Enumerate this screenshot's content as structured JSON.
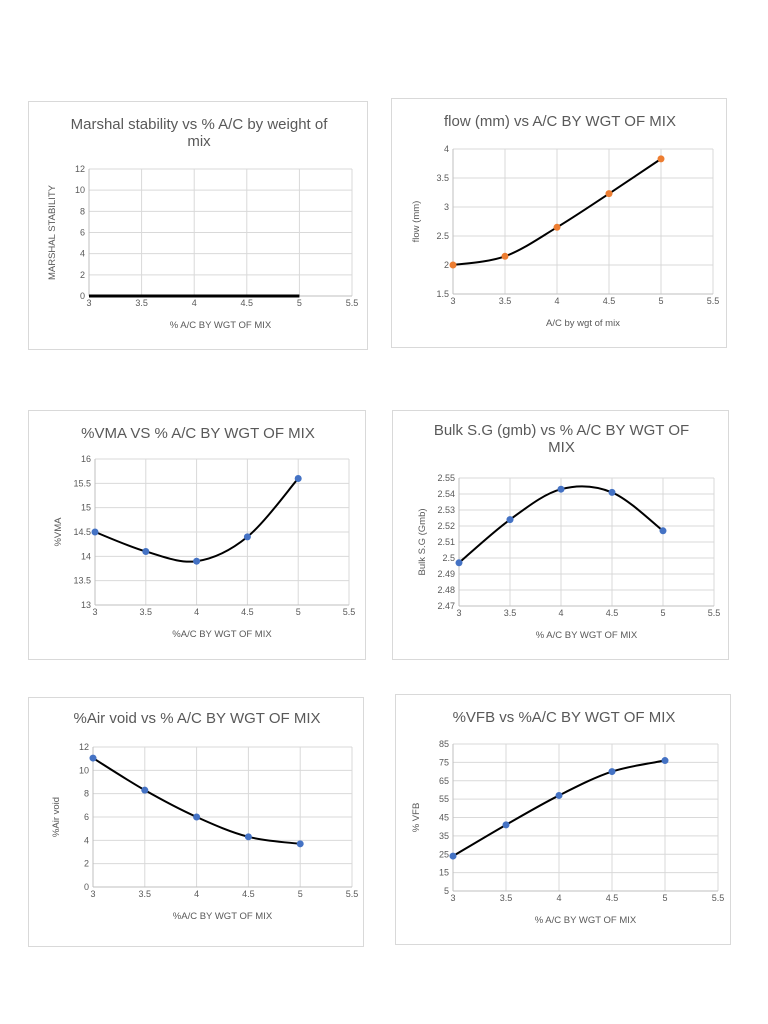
{
  "chart_data": [
    {
      "type": "line",
      "title": "Marshal stability vs % A/C by weight of mix",
      "xlabel": "% A/C BY WGT OF MIX",
      "ylabel": "MARSHAL STABILITY",
      "xlim": [
        3,
        5.5
      ],
      "ylim": [
        0,
        12
      ],
      "xticks": [
        "3",
        "3.5",
        "4",
        "4.5",
        "5",
        "5.5"
      ],
      "yticks": [
        "0",
        "2",
        "4",
        "6",
        "8",
        "10",
        "12"
      ],
      "grid": true,
      "smooth": false,
      "markers": false,
      "x": [
        3,
        3.5,
        4,
        4.5,
        5
      ],
      "values": [
        0,
        0,
        0,
        0,
        0
      ],
      "line_color": "#000000"
    },
    {
      "type": "line",
      "title": "flow (mm) vs A/C BY WGT OF MIX",
      "xlabel": "A/C by wgt of mix",
      "ylabel": "flow (mm)",
      "xlim": [
        3,
        5.5
      ],
      "ylim": [
        1.5,
        4
      ],
      "xticks": [
        "3",
        "3.5",
        "4",
        "4.5",
        "5",
        "5.5"
      ],
      "yticks": [
        "1.5",
        "2",
        "2.5",
        "3",
        "3.5",
        "4"
      ],
      "grid": true,
      "smooth": true,
      "markers": true,
      "x": [
        3,
        3.5,
        4,
        4.5,
        5
      ],
      "values": [
        2.0,
        2.15,
        2.65,
        3.23,
        3.83
      ],
      "marker_color": "#ed7d31",
      "line_color": "#000000"
    },
    {
      "type": "line",
      "title": "%VMA VS % A/C BY WGT OF MIX",
      "xlabel": "%A/C BY WGT OF MIX",
      "ylabel": "%VMA",
      "xlim": [
        3,
        5.5
      ],
      "ylim": [
        13,
        16
      ],
      "xticks": [
        "3",
        "3.5",
        "4",
        "4.5",
        "5",
        "5.5"
      ],
      "yticks": [
        "13",
        "13.5",
        "14",
        "14.5",
        "15",
        "15.5",
        "16"
      ],
      "grid": true,
      "smooth": true,
      "markers": true,
      "x": [
        3,
        3.5,
        4,
        4.5,
        5
      ],
      "values": [
        14.5,
        14.1,
        13.9,
        14.4,
        15.6
      ],
      "marker_color": "#4472c4",
      "line_color": "#000000"
    },
    {
      "type": "line",
      "title": "Bulk S.G (gmb) vs % A/C BY WGT OF MIX",
      "xlabel": "% A/C BY WGT OF MIX",
      "ylabel": "Bulk S.G (Gmb)",
      "xlim": [
        3,
        5.5
      ],
      "ylim": [
        2.47,
        2.55
      ],
      "xticks": [
        "3",
        "3.5",
        "4",
        "4.5",
        "5",
        "5.5"
      ],
      "yticks": [
        "2.47",
        "2.48",
        "2.49",
        "2.5",
        "2.51",
        "2.52",
        "2.53",
        "2.54",
        "2.55"
      ],
      "grid": true,
      "smooth": true,
      "markers": true,
      "x": [
        3,
        3.5,
        4,
        4.5,
        5
      ],
      "values": [
        2.497,
        2.524,
        2.543,
        2.541,
        2.517
      ],
      "marker_color": "#4472c4",
      "line_color": "#000000"
    },
    {
      "type": "line",
      "title": "%Air void vs % A/C BY WGT OF MIX",
      "xlabel": "%A/C BY WGT OF MIX",
      "ylabel": "%Air void",
      "xlim": [
        3,
        5.5
      ],
      "ylim": [
        0,
        12
      ],
      "xticks": [
        "3",
        "3.5",
        "4",
        "4.5",
        "5",
        "5.5"
      ],
      "yticks": [
        "0",
        "2",
        "4",
        "6",
        "8",
        "10",
        "12"
      ],
      "grid": true,
      "smooth": true,
      "markers": true,
      "x": [
        3,
        3.5,
        4,
        4.5,
        5
      ],
      "values": [
        11.05,
        8.3,
        6.0,
        4.3,
        3.7
      ],
      "marker_color": "#4472c4",
      "line_color": "#000000"
    },
    {
      "type": "line",
      "title": "%VFB vs %A/C BY WGT OF MIX",
      "xlabel": "% A/C BY WGT OF MIX",
      "ylabel": "% VFB",
      "xlim": [
        3,
        5.5
      ],
      "ylim": [
        5,
        85
      ],
      "xticks": [
        "3",
        "3.5",
        "4",
        "4.5",
        "5",
        "5.5"
      ],
      "yticks": [
        "5",
        "15",
        "25",
        "35",
        "45",
        "55",
        "65",
        "75",
        "85"
      ],
      "grid": true,
      "smooth": true,
      "markers": true,
      "x": [
        3,
        3.5,
        4,
        4.5,
        5
      ],
      "values": [
        24,
        41,
        57,
        70,
        76
      ],
      "marker_color": "#4472c4",
      "line_color": "#000000"
    }
  ]
}
